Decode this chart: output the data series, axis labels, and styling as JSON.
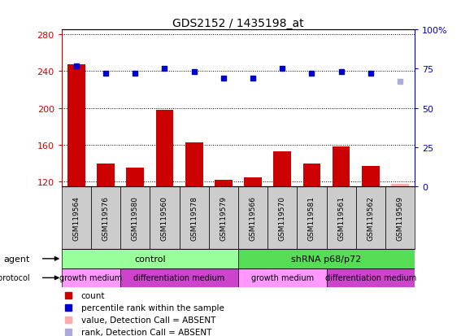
{
  "title": "GDS2152 / 1435198_at",
  "samples": [
    "GSM119564",
    "GSM119576",
    "GSM119580",
    "GSM119560",
    "GSM119578",
    "GSM119579",
    "GSM119566",
    "GSM119570",
    "GSM119581",
    "GSM119561",
    "GSM119562",
    "GSM119569"
  ],
  "bar_values": [
    247,
    140,
    135,
    198,
    163,
    122,
    125,
    153,
    140,
    158,
    137,
    118
  ],
  "bar_absent": [
    false,
    false,
    false,
    false,
    false,
    false,
    false,
    false,
    false,
    false,
    false,
    true
  ],
  "rank_values": [
    77,
    72,
    72,
    75,
    73,
    69,
    69,
    75,
    72,
    73,
    72,
    67
  ],
  "rank_absent": [
    false,
    false,
    false,
    false,
    false,
    false,
    false,
    false,
    false,
    false,
    false,
    true
  ],
  "ylim_left": [
    115,
    285
  ],
  "ylim_right": [
    0,
    100
  ],
  "yticks_left": [
    120,
    160,
    200,
    240,
    280
  ],
  "yticks_right": [
    0,
    25,
    50,
    75,
    100
  ],
  "ytick_labels_right": [
    "0",
    "25",
    "50",
    "75",
    "100%"
  ],
  "bar_color": "#cc0000",
  "bar_absent_color": "#ffaaaa",
  "rank_color": "#0000cc",
  "rank_absent_color": "#aaaadd",
  "agent_groups": [
    {
      "label": "control",
      "start": 0,
      "end": 6,
      "color": "#99ff99"
    },
    {
      "label": "shRNA p68/p72",
      "start": 6,
      "end": 12,
      "color": "#55dd55"
    }
  ],
  "growth_groups": [
    {
      "label": "growth medium",
      "start": 0,
      "end": 2,
      "color": "#ff99ff"
    },
    {
      "label": "differentiation medium",
      "start": 2,
      "end": 6,
      "color": "#cc44cc"
    },
    {
      "label": "growth medium",
      "start": 6,
      "end": 9,
      "color": "#ff99ff"
    },
    {
      "label": "differentiation medium",
      "start": 9,
      "end": 12,
      "color": "#cc44cc"
    }
  ],
  "legend_items": [
    {
      "label": "count",
      "color": "#cc0000"
    },
    {
      "label": "percentile rank within the sample",
      "color": "#0000cc"
    },
    {
      "label": "value, Detection Call = ABSENT",
      "color": "#ffaaaa"
    },
    {
      "label": "rank, Detection Call = ABSENT",
      "color": "#aaaadd"
    }
  ],
  "background_color": "#ffffff",
  "label_band_color": "#cccccc",
  "xlim": [
    -0.5,
    11.5
  ]
}
